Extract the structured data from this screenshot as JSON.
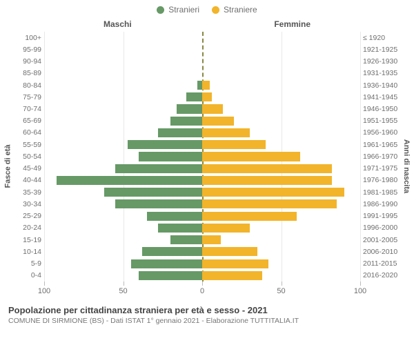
{
  "legend": {
    "male": {
      "label": "Stranieri",
      "color": "#669966"
    },
    "female": {
      "label": "Straniere",
      "color": "#f2b42a"
    }
  },
  "columns": {
    "left": "Maschi",
    "right": "Femmine"
  },
  "y_left": {
    "title": "Fasce di età"
  },
  "y_right": {
    "title": "Anni di nascita"
  },
  "chart": {
    "type": "population-pyramid",
    "x_max": 100,
    "x_ticks": [
      100,
      50,
      0,
      50,
      100
    ],
    "background_color": "#ffffff",
    "grid_color": "#e8e8e8",
    "center_line_color": "#888844",
    "bar_colors": {
      "male": "#669966",
      "female": "#f2b42a"
    },
    "row_bar_inset_pct": 12,
    "tick_label_fontsize": 10.5,
    "axis_title_fontsize": 11,
    "rows": [
      {
        "age": "100+",
        "birth": "≤ 1920",
        "m": 0,
        "f": 0
      },
      {
        "age": "95-99",
        "birth": "1921-1925",
        "m": 0,
        "f": 0
      },
      {
        "age": "90-94",
        "birth": "1926-1930",
        "m": 0,
        "f": 0
      },
      {
        "age": "85-89",
        "birth": "1931-1935",
        "m": 0,
        "f": 0
      },
      {
        "age": "80-84",
        "birth": "1936-1940",
        "m": 3,
        "f": 5
      },
      {
        "age": "75-79",
        "birth": "1941-1945",
        "m": 10,
        "f": 6
      },
      {
        "age": "70-74",
        "birth": "1946-1950",
        "m": 16,
        "f": 13
      },
      {
        "age": "65-69",
        "birth": "1951-1955",
        "m": 20,
        "f": 20
      },
      {
        "age": "60-64",
        "birth": "1956-1960",
        "m": 28,
        "f": 30
      },
      {
        "age": "55-59",
        "birth": "1961-1965",
        "m": 47,
        "f": 40
      },
      {
        "age": "50-54",
        "birth": "1966-1970",
        "m": 40,
        "f": 62
      },
      {
        "age": "45-49",
        "birth": "1971-1975",
        "m": 55,
        "f": 82
      },
      {
        "age": "40-44",
        "birth": "1976-1980",
        "m": 92,
        "f": 82
      },
      {
        "age": "35-39",
        "birth": "1981-1985",
        "m": 62,
        "f": 90
      },
      {
        "age": "30-34",
        "birth": "1986-1990",
        "m": 55,
        "f": 85
      },
      {
        "age": "25-29",
        "birth": "1991-1995",
        "m": 35,
        "f": 60
      },
      {
        "age": "20-24",
        "birth": "1996-2000",
        "m": 28,
        "f": 30
      },
      {
        "age": "15-19",
        "birth": "2001-2005",
        "m": 20,
        "f": 12
      },
      {
        "age": "10-14",
        "birth": "2006-2010",
        "m": 38,
        "f": 35
      },
      {
        "age": "5-9",
        "birth": "2011-2015",
        "m": 45,
        "f": 42
      },
      {
        "age": "0-4",
        "birth": "2016-2020",
        "m": 40,
        "f": 38
      }
    ]
  },
  "footer": {
    "title": "Popolazione per cittadinanza straniera per età e sesso - 2021",
    "subtitle": "COMUNE DI SIRMIONE (BS) - Dati ISTAT 1° gennaio 2021 - Elaborazione TUTTITALIA.IT",
    "title_fontsize": 13,
    "subtitle_fontsize": 10.5
  }
}
